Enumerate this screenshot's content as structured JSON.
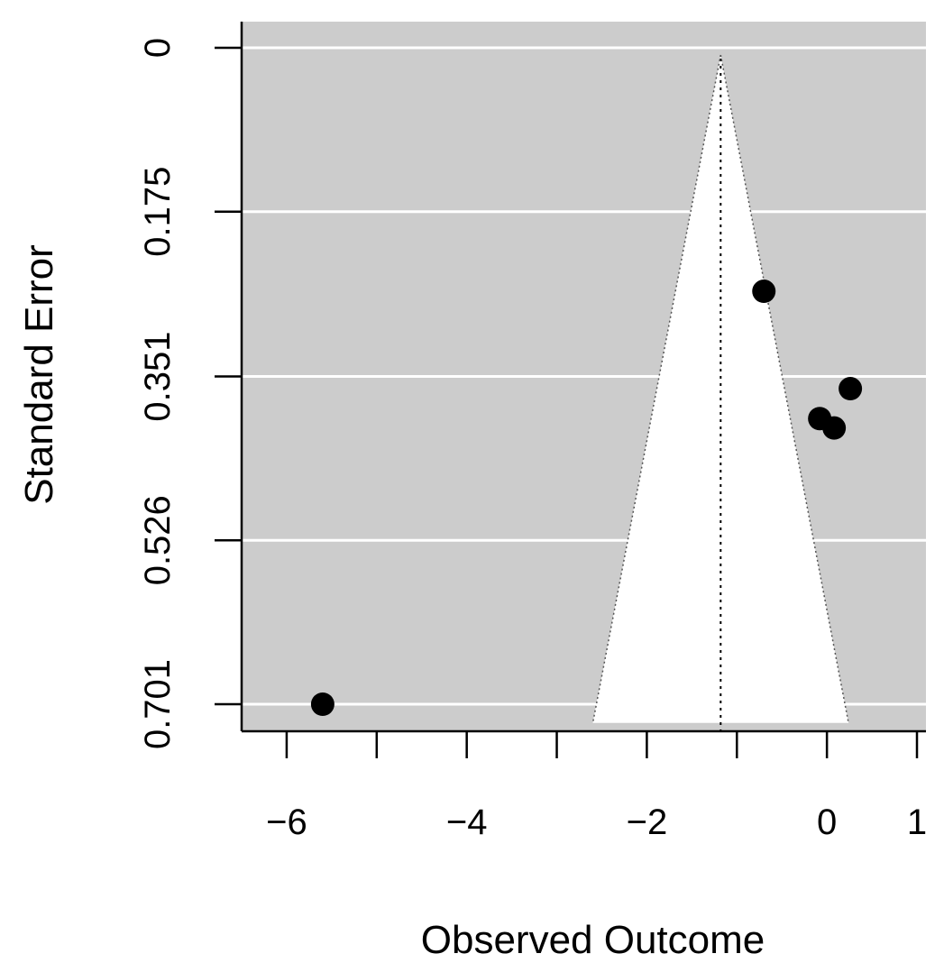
{
  "chart_data": {
    "type": "scatter",
    "subtype": "funnel",
    "title": "",
    "xlabel": "Observed Outcome",
    "ylabel": "Standard Error",
    "xlim": [
      -6.5,
      1.1
    ],
    "ylim": [
      0.701,
      0
    ],
    "y_reversed": true,
    "grid": true,
    "background_color": "#cccccc",
    "funnel_color": "#ffffff",
    "x_ticks": [
      -6,
      -5,
      -4,
      -3,
      -2,
      -1,
      0,
      1
    ],
    "x_tick_labels": [
      "−6",
      "",
      "−4",
      "",
      "−2",
      "",
      "0",
      "1"
    ],
    "y_ticks": [
      0,
      0.175,
      0.351,
      0.526,
      0.701
    ],
    "y_tick_labels": [
      "0",
      "0.175",
      "0.351",
      "0.526",
      "0.701"
    ],
    "funnel": {
      "center": -1.18,
      "apex_se": 0,
      "base_se": 0.721,
      "base_left": -2.6,
      "base_right": 0.24
    },
    "points": [
      {
        "x": -0.7,
        "y": 0.26
      },
      {
        "x": 0.26,
        "y": 0.364
      },
      {
        "x": -0.08,
        "y": 0.396
      },
      {
        "x": 0.08,
        "y": 0.406
      },
      {
        "x": -5.6,
        "y": 0.701
      }
    ]
  }
}
